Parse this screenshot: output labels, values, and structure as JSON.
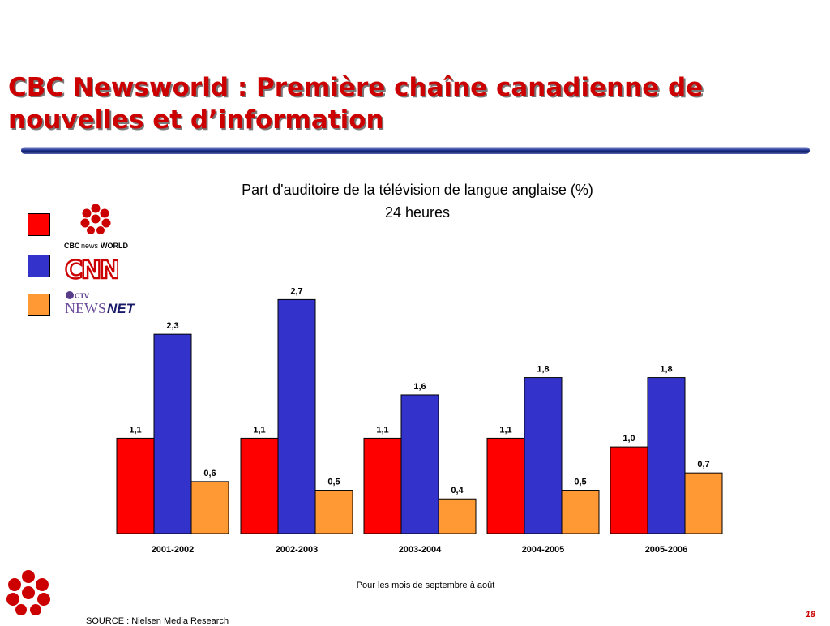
{
  "slide": {
    "title_line1": "CBC Newsworld : Première chaîne canadienne de",
    "title_line2": "nouvelles et d’information",
    "page_number": "18",
    "source": "SOURCE : Nielsen Media Research",
    "note": "Pour les mois de septembre à août"
  },
  "legend": [
    {
      "color": "#ff0000",
      "logo": "cbc-newsworld-logo",
      "logo_text": "CBCnewsWORLD"
    },
    {
      "color": "#3333cc",
      "logo": "cnn-logo",
      "logo_text": "CNN"
    },
    {
      "color": "#ff9933",
      "logo": "ctv-newsnet-logo",
      "logo_text": "CTV NEWSNET"
    }
  ],
  "chart_data": {
    "type": "bar",
    "title": "Part d'auditoire de la télévision de langue anglaise (%)",
    "subtitle": "24 heures",
    "categories": [
      "2001-2002",
      "2002-2003",
      "2003-2004",
      "2004-2005",
      "2005-2006"
    ],
    "series": [
      {
        "color": "#ff0000",
        "values": [
          1.1,
          1.1,
          1.1,
          1.1,
          1.0
        ],
        "labels": [
          "1,1",
          "1,1",
          "1,1",
          "1,1",
          "1,0"
        ]
      },
      {
        "color": "#3333cc",
        "values": [
          2.3,
          2.7,
          1.6,
          1.8,
          1.8
        ],
        "labels": [
          "2,3",
          "2,7",
          "1,6",
          "1,8",
          "1,8"
        ]
      },
      {
        "color": "#ff9933",
        "values": [
          0.6,
          0.5,
          0.4,
          0.5,
          0.7
        ],
        "labels": [
          "0,6",
          "0,5",
          "0,4",
          "0,5",
          "0,7"
        ]
      }
    ],
    "ylim": [
      0,
      2.9
    ],
    "grid": false,
    "legend_position": "left"
  }
}
